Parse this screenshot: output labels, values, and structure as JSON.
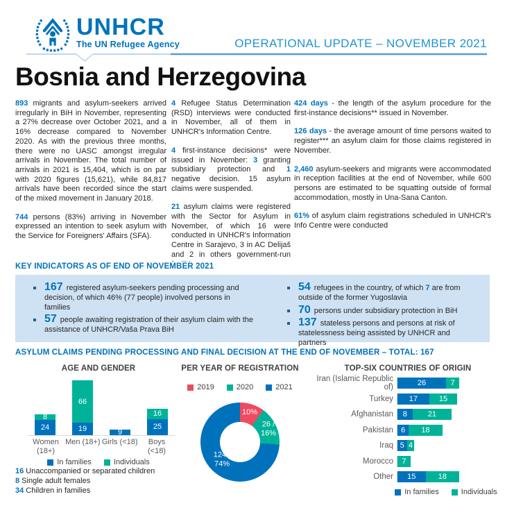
{
  "colors": {
    "blue": "#0072BC",
    "teal": "#00B398",
    "red": "#EF4A60",
    "box_bg": "#CFE2F3",
    "header_text": "#2193D1",
    "line_light": "#BDD7EE",
    "line_dark": "#5B9BD5"
  },
  "header": {
    "wordmark": "UNHCR",
    "tagline": "The UN Refugee Agency",
    "update_title": "OPERATIONAL UPDATE – NOVEMBER 2021"
  },
  "page_title": "Bosnia and Herzegovina",
  "intro_columns": [
    {
      "paragraphs": [
        {
          "segs": [
            {
              "t": "893",
              "hl": true
            },
            {
              "t": " migrants and asylum-seekers arrived irregularly in BiH in November, representing a 27% decrease over October 2021, and a 16% decrease compared to November 2020.  As with the previous three months, there were no UASC amongst irregular arrivals in November. The total number of arrivals in 2021 is 15,404, which is on par with 2020 figures (15,621), while 84,817 arrivals have been recorded since the start of the mixed movement in January 2018."
            }
          ]
        },
        {
          "segs": [
            {
              "t": "744",
              "hl": true
            },
            {
              "t": " persons (83%) arriving in November expressed an intention to seek asylum with the Service for Foreigners' Affairs (SFA)."
            }
          ]
        }
      ]
    },
    {
      "paragraphs": [
        {
          "segs": [
            {
              "t": "4",
              "hl": true
            },
            {
              "t": " Refugee Status Determination (RSD) interviews were conducted in November, all of them in UNHCR's Information Centre."
            }
          ]
        },
        {
          "segs": [
            {
              "t": "4",
              "hl": true
            },
            {
              "t": " first-instance decisions* were issued in November: "
            },
            {
              "t": "3",
              "hl": true
            },
            {
              "t": " granting subsidiary protection and "
            },
            {
              "t": "1",
              "hl": true
            },
            {
              "t": " negative decision. 15 asylum claims were suspended."
            }
          ]
        },
        {
          "segs": [
            {
              "t": "21",
              "hl": true
            },
            {
              "t": " asylum claims were registered with the Sector for Asylum in November, of which 16 were conducted in UNHCR's Information Centre in Sarajevo, 3 in AC Delijaš and 2 in others government-run facilities."
            }
          ]
        }
      ]
    },
    {
      "paragraphs": [
        {
          "segs": [
            {
              "t": "424 days",
              "hl": true
            },
            {
              "t": " - the length of the asylum procedure for the first-instance decisions** issued in November."
            }
          ]
        },
        {
          "segs": [
            {
              "t": "126 days",
              "hl": true
            },
            {
              "t": " - the average amount of time persons waited to register*** an asylum claim for those claims registered in November."
            }
          ]
        },
        {
          "segs": [
            {
              "t": "2,460",
              "hl": true
            },
            {
              "t": " asylum-seekers and migrants were accommodated in reception facilities at the end of November, while 600 persons are estimated to be squatting outside of formal accommodation, mostly in Una-Sana Canton."
            }
          ]
        },
        {
          "segs": [
            {
              "t": "61%",
              "hl": true
            },
            {
              "t": " of asylum claim registrations scheduled in UNHCR's Info Centre were conducted"
            }
          ]
        }
      ]
    }
  ],
  "key_indicators": {
    "title": "KEY INDICATORS AS OF END OF NOVEMBER 2021",
    "columns": [
      [
        {
          "num": "167",
          "segs": [
            {
              "t": "registered asylum-seekers pending processing and decision, of which 46% (77 people) involved persons in families"
            }
          ]
        },
        {
          "num": "57",
          "segs": [
            {
              "t": "people awaiting registration of their asylum claim with the assistance of UNHCR/Vaša Prava BiH"
            }
          ]
        }
      ],
      [
        {
          "num": "54",
          "segs": [
            {
              "t": "refugees in the country, of which "
            },
            {
              "t": "7",
              "hl": true
            },
            {
              "t": " are from outside of the former Yugoslavia"
            }
          ]
        },
        {
          "num": "70",
          "segs": [
            {
              "t": "persons under subsidiary protection in BiH"
            }
          ]
        },
        {
          "num": "137",
          "segs": [
            {
              "t": "stateless persons and persons at risk of statelessness being assisted by UNHCR and partners"
            }
          ]
        }
      ]
    ]
  },
  "charts_section_title": "ASYLUM CLAIMS PENDING PROCESSING AND FINAL DECISION AT THE END OF NOVEMBER – TOTAL: 167",
  "chart_data": [
    {
      "type": "bar",
      "title": "AGE AND GENDER",
      "stacked": true,
      "categories": [
        "Women (18+)",
        "Men (18+)",
        "Girls (<18)",
        "Boys (<18)"
      ],
      "series": [
        {
          "name": "In families",
          "color": "#0072BC",
          "values": [
            24,
            19,
            9,
            25
          ]
        },
        {
          "name": "Individuals",
          "color": "#00B398",
          "values": [
            8,
            66,
            0,
            16
          ]
        }
      ],
      "ylim": [
        0,
        85
      ],
      "grid": false,
      "legend_position": "bottom"
    },
    {
      "type": "pie",
      "title": "PER YEAR OF REGISTRATION",
      "donut": true,
      "legend_position": "top",
      "slices": [
        {
          "label": "2019",
          "pct": 10,
          "display": "10%",
          "color": "#EF4A60"
        },
        {
          "label": "2020",
          "pct": 16,
          "count": 26,
          "display": "26 /\n16%",
          "color": "#00B398"
        },
        {
          "label": "2021",
          "pct": 74,
          "count": 124,
          "display": "124 /\n74%",
          "color": "#0072BC"
        }
      ]
    },
    {
      "type": "bar",
      "title": "TOP-SIX COUNTRIES OF ORIGIN",
      "orientation": "horizontal",
      "stacked": true,
      "categories": [
        "Iran (Islamic Republic of)",
        "Turkey",
        "Afghanistan",
        "Pakistan",
        "Iraq",
        "Morocco",
        "Other"
      ],
      "series": [
        {
          "name": "In families",
          "color": "#0072BC",
          "values": [
            26,
            17,
            8,
            6,
            5,
            0,
            15
          ]
        },
        {
          "name": "Individuals",
          "color": "#00B398",
          "values": [
            7,
            15,
            21,
            18,
            4,
            7,
            18
          ]
        }
      ],
      "xlim": [
        0,
        33
      ],
      "legend_position": "bottom"
    }
  ],
  "footnotes": [
    {
      "num": "16",
      "text": "Unaccompanied or separated children"
    },
    {
      "num": "8",
      "text": "Single adult females"
    },
    {
      "num": "34",
      "text": "Children in families"
    }
  ]
}
